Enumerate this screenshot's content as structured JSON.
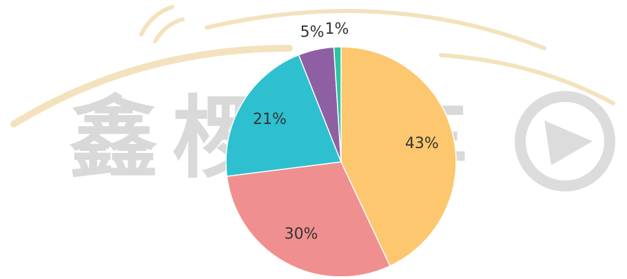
{
  "chart_data": {
    "type": "pie",
    "watermark": "鑫椤汽车",
    "categories": [
      null,
      null,
      null,
      null,
      null
    ],
    "values": [
      43,
      30,
      21,
      5,
      1
    ],
    "value_labels": [
      "43%",
      "30%",
      "21%",
      "5%",
      "1%"
    ],
    "colors": [
      "#fcc76e",
      "#f08f8f",
      "#2ec0cf",
      "#8f5fa3",
      "#2dc4a2"
    ]
  }
}
